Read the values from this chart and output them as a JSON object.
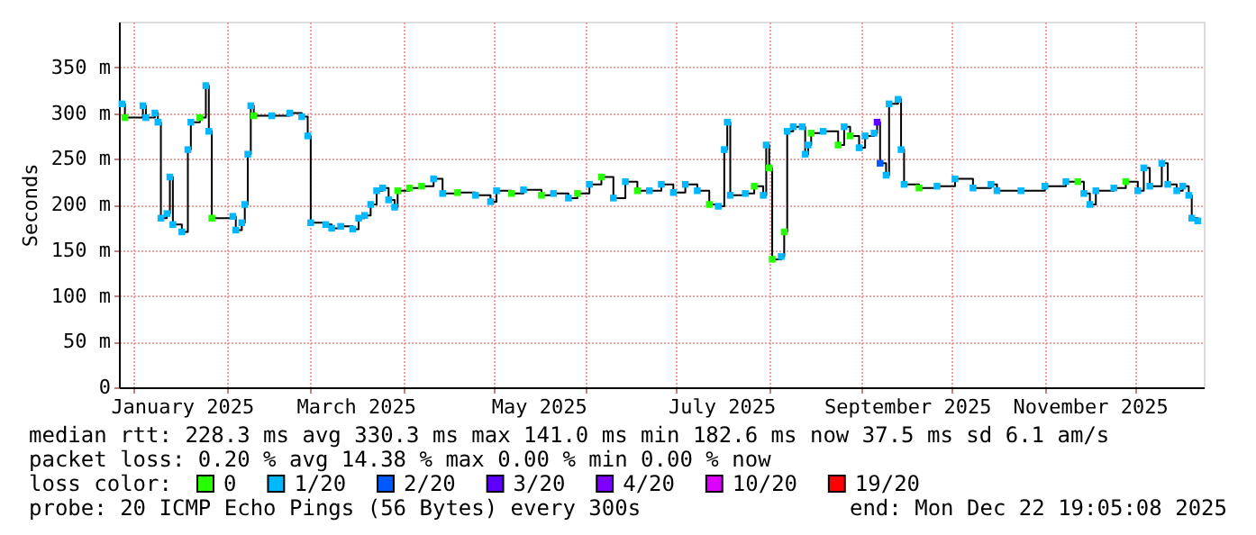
{
  "chart_data": {
    "type": "step",
    "ylabel": "Seconds",
    "xlim": [
      "2024-12-27",
      "2025-12-24"
    ],
    "xticks": [
      {
        "value": "2025-01-01",
        "label": null
      },
      {
        "value": "2025-01-17",
        "label": "January 2025"
      },
      {
        "value": "2025-02-01",
        "label": null
      },
      {
        "value": "2025-03-01",
        "label": null
      },
      {
        "value": "2025-03-16",
        "label": "March 2025"
      },
      {
        "value": "2025-04-01",
        "label": null
      },
      {
        "value": "2025-05-01",
        "label": null
      },
      {
        "value": "2025-05-16",
        "label": "May 2025"
      },
      {
        "value": "2025-06-01",
        "label": null
      },
      {
        "value": "2025-07-01",
        "label": null
      },
      {
        "value": "2025-07-16",
        "label": "July 2025"
      },
      {
        "value": "2025-08-01",
        "label": null
      },
      {
        "value": "2025-09-01",
        "label": null
      },
      {
        "value": "2025-09-16",
        "label": "September 2025"
      },
      {
        "value": "2025-10-01",
        "label": null
      },
      {
        "value": "2025-11-01",
        "label": null
      },
      {
        "value": "2025-11-16",
        "label": "November 2025"
      },
      {
        "value": "2025-12-01",
        "label": null
      }
    ],
    "ylim": [
      0,
      400
    ],
    "yticks": [
      0,
      {
        "value": 50,
        "label": "50 m"
      },
      {
        "value": 100,
        "label": "100 m"
      },
      {
        "value": 150,
        "label": "150 m"
      },
      {
        "value": 200,
        "label": "200 m"
      },
      {
        "value": 250,
        "label": "250 m"
      },
      {
        "value": 300,
        "label": "300 m"
      },
      {
        "value": 350,
        "label": "350 m"
      }
    ],
    "grid": true,
    "legend": "bottom",
    "legend_title": "loss color:",
    "annotations": [
      "median rtt:  228.3 ms avg  330.3 ms max  141.0 ms min  182.6 ms now  37.5 ms sd  6.1   am/s",
      "packet loss: 0.20 % avg  14.38 % max  0.00 % min  0.00 % now",
      "probe:       20 ICMP Echo Pings (56 Bytes) every 300s",
      "end: Mon Dec 22 19:05:08 2025"
    ],
    "x": [
      "2024-12-28",
      "2024-12-29",
      "2025-01-04",
      "2025-01-05",
      "2025-01-08",
      "2025-01-09",
      "2025-01-10",
      "2025-01-12",
      "2025-01-13",
      "2025-01-14",
      "2025-01-17",
      "2025-01-19",
      "2025-01-20",
      "2025-01-23",
      "2025-01-25",
      "2025-01-26",
      "2025-01-27",
      "2025-02-03",
      "2025-02-04",
      "2025-02-06",
      "2025-02-07",
      "2025-02-08",
      "2025-02-09",
      "2025-02-10",
      "2025-02-16",
      "2025-02-22",
      "2025-02-26",
      "2025-02-28",
      "2025-03-01",
      "2025-03-06",
      "2025-03-08",
      "2025-03-11",
      "2025-03-15",
      "2025-03-17",
      "2025-03-19",
      "2025-03-21",
      "2025-03-23",
      "2025-03-25",
      "2025-03-27",
      "2025-03-29",
      "2025-03-30",
      "2025-04-03",
      "2025-04-07",
      "2025-04-11",
      "2025-04-14",
      "2025-04-19",
      "2025-04-25",
      "2025-04-30",
      "2025-05-02",
      "2025-05-07",
      "2025-05-11",
      "2025-05-17",
      "2025-05-21",
      "2025-05-26",
      "2025-05-29",
      "2025-06-02",
      "2025-06-06",
      "2025-06-10",
      "2025-06-14",
      "2025-06-18",
      "2025-06-22",
      "2025-06-26",
      "2025-06-30",
      "2025-07-04",
      "2025-07-08",
      "2025-07-12",
      "2025-07-15",
      "2025-07-17",
      "2025-07-18",
      "2025-07-19",
      "2025-07-24",
      "2025-07-27",
      "2025-07-30",
      "2025-07-31",
      "2025-08-01",
      "2025-08-02",
      "2025-08-05",
      "2025-08-06",
      "2025-08-07",
      "2025-08-09",
      "2025-08-12",
      "2025-08-13",
      "2025-08-14",
      "2025-08-15",
      "2025-08-19",
      "2025-08-24",
      "2025-08-26",
      "2025-08-28",
      "2025-08-31",
      "2025-09-02",
      "2025-09-05",
      "2025-09-06",
      "2025-09-07",
      "2025-09-09",
      "2025-09-10",
      "2025-09-13",
      "2025-09-14",
      "2025-09-15",
      "2025-09-20",
      "2025-09-26",
      "2025-10-02",
      "2025-10-08",
      "2025-10-14",
      "2025-10-16",
      "2025-10-24",
      "2025-11-01",
      "2025-11-08",
      "2025-11-12",
      "2025-11-14",
      "2025-11-16",
      "2025-11-18",
      "2025-11-24",
      "2025-11-28",
      "2025-12-02",
      "2025-12-04",
      "2025-12-06",
      "2025-12-10",
      "2025-12-12",
      "2025-12-15",
      "2025-12-17",
      "2025-12-19",
      "2025-12-20",
      "2025-12-22"
    ],
    "series": [
      {
        "color": "#000000",
        "marker": "none",
        "line_style": "solid",
        "values": [
          310,
          295,
          308,
          295,
          300,
          290,
          185,
          190,
          230,
          178,
          170,
          260,
          290,
          295,
          330,
          280,
          185,
          187,
          172,
          180,
          200,
          255,
          308,
          297,
          297,
          300,
          296,
          275,
          180,
          178,
          174,
          176,
          173,
          185,
          188,
          200,
          215,
          218,
          205,
          197,
          215,
          218,
          220,
          228,
          212,
          213,
          210,
          203,
          215,
          212,
          216,
          210,
          212,
          207,
          212,
          222,
          230,
          207,
          225,
          215,
          215,
          222,
          213,
          222,
          215,
          200,
          198,
          260,
          290,
          210,
          212,
          220,
          210,
          265,
          240,
          140,
          143,
          170,
          280,
          285,
          285,
          255,
          265,
          278,
          280,
          265,
          285,
          275,
          262,
          275,
          278,
          290,
          245,
          232,
          310,
          315,
          260,
          222,
          218,
          220,
          228,
          218,
          222,
          215,
          215,
          220,
          225,
          225,
          212,
          200,
          215,
          218,
          225,
          215,
          240,
          220,
          245,
          222,
          215,
          220,
          210,
          185,
          182
        ]
      },
      {
        "type": "scatter",
        "name": "0",
        "color": "#26ff00",
        "marker": "square",
        "x": [
          "2024-12-29",
          "2025-01-23",
          "2025-01-27",
          "2025-02-10",
          "2025-03-30",
          "2025-04-03",
          "2025-04-07",
          "2025-04-19",
          "2025-05-07",
          "2025-05-17",
          "2025-05-29",
          "2025-06-06",
          "2025-06-18",
          "2025-07-12",
          "2025-07-27",
          "2025-08-01",
          "2025-08-02",
          "2025-08-06",
          "2025-08-15",
          "2025-08-24",
          "2025-08-28",
          "2025-09-20",
          "2025-11-12",
          "2025-11-28"
        ],
        "values": [
          295,
          295,
          185,
          297,
          215,
          218,
          220,
          213,
          212,
          210,
          212,
          230,
          215,
          200,
          220,
          240,
          140,
          170,
          278,
          265,
          275,
          218,
          225,
          225
        ]
      },
      {
        "type": "scatter",
        "name": "1/20",
        "color": "#00b8ff",
        "marker": "square",
        "x": [
          "2024-12-28",
          "2025-01-04",
          "2025-01-05",
          "2025-01-08",
          "2025-01-09",
          "2025-01-10",
          "2025-01-12",
          "2025-01-13",
          "2025-01-14",
          "2025-01-17",
          "2025-01-19",
          "2025-01-20",
          "2025-01-25",
          "2025-01-26",
          "2025-02-03",
          "2025-02-04",
          "2025-02-06",
          "2025-02-07",
          "2025-02-08",
          "2025-02-09",
          "2025-02-16",
          "2025-02-22",
          "2025-02-26",
          "2025-02-28",
          "2025-03-01",
          "2025-03-06",
          "2025-03-08",
          "2025-03-11",
          "2025-03-15",
          "2025-03-17",
          "2025-03-19",
          "2025-03-21",
          "2025-03-23",
          "2025-03-25",
          "2025-03-27",
          "2025-03-29",
          "2025-04-11",
          "2025-04-14",
          "2025-04-25",
          "2025-04-30",
          "2025-05-02",
          "2025-05-11",
          "2025-05-21",
          "2025-05-26",
          "2025-06-02",
          "2025-06-10",
          "2025-06-14",
          "2025-06-22",
          "2025-06-26",
          "2025-06-30",
          "2025-07-04",
          "2025-07-08",
          "2025-07-15",
          "2025-07-17",
          "2025-07-18",
          "2025-07-19",
          "2025-07-24",
          "2025-07-30",
          "2025-07-31",
          "2025-08-05",
          "2025-08-07",
          "2025-08-09",
          "2025-08-12",
          "2025-08-13",
          "2025-08-14",
          "2025-08-19",
          "2025-08-26",
          "2025-08-31",
          "2025-09-02",
          "2025-09-05",
          "2025-09-09",
          "2025-09-10",
          "2025-09-13",
          "2025-09-14",
          "2025-09-15",
          "2025-09-26",
          "2025-10-02",
          "2025-10-08",
          "2025-10-14",
          "2025-10-16",
          "2025-10-24",
          "2025-11-01",
          "2025-11-08",
          "2025-11-14",
          "2025-11-16",
          "2025-11-18",
          "2025-11-24",
          "2025-12-02",
          "2025-12-04",
          "2025-12-06",
          "2025-12-10",
          "2025-12-12",
          "2025-12-15",
          "2025-12-17",
          "2025-12-19",
          "2025-12-20",
          "2025-12-22"
        ],
        "values": [
          310,
          308,
          295,
          300,
          290,
          185,
          190,
          230,
          178,
          170,
          260,
          290,
          330,
          280,
          187,
          172,
          180,
          200,
          255,
          308,
          297,
          300,
          296,
          275,
          180,
          178,
          174,
          176,
          173,
          185,
          188,
          200,
          215,
          218,
          205,
          197,
          228,
          212,
          210,
          203,
          215,
          216,
          212,
          207,
          222,
          207,
          225,
          215,
          222,
          213,
          222,
          215,
          198,
          260,
          290,
          210,
          212,
          210,
          265,
          143,
          280,
          285,
          285,
          255,
          265,
          280,
          285,
          262,
          275,
          278,
          232,
          310,
          315,
          260,
          222,
          220,
          228,
          218,
          222,
          215,
          215,
          220,
          225,
          212,
          200,
          215,
          218,
          215,
          240,
          220,
          245,
          222,
          215,
          220,
          210,
          185,
          182
        ]
      },
      {
        "type": "scatter",
        "name": "2/20",
        "color": "#0059ff",
        "marker": "square",
        "x": [
          "2025-09-07"
        ],
        "values": [
          245
        ]
      },
      {
        "type": "scatter",
        "name": "3/20",
        "color": "#5e00ff",
        "marker": "square",
        "x": [
          "2025-09-06"
        ],
        "values": [
          290
        ]
      },
      {
        "type": "scatter",
        "name": "4/20",
        "color": "#7e00ff",
        "marker": "square",
        "values": [
          null,
          null,
          null,
          null,
          null,
          null,
          null,
          null,
          null,
          null,
          null,
          null,
          null,
          null,
          null,
          null,
          null,
          null,
          null,
          null,
          null,
          null,
          null,
          null,
          null,
          null,
          null,
          null,
          null,
          null,
          null,
          null,
          null,
          null,
          null,
          null,
          null,
          null,
          null,
          null,
          null,
          null,
          null,
          null,
          null,
          null,
          null,
          null,
          null,
          null,
          null,
          null,
          null,
          null,
          null,
          null,
          null,
          null,
          null,
          null,
          null,
          null,
          null,
          null,
          null,
          null,
          null,
          null,
          null,
          null,
          null,
          null,
          null,
          null,
          null,
          null,
          null,
          null,
          null,
          null,
          null,
          null,
          null,
          null,
          null,
          null,
          null,
          null,
          null,
          null,
          null,
          null,
          null,
          null,
          null,
          null,
          null,
          null,
          null,
          null,
          null,
          null,
          null,
          null,
          null,
          null,
          null,
          null,
          null,
          null,
          null,
          null,
          null,
          null,
          null,
          null,
          null,
          null,
          null,
          null,
          null,
          null,
          null
        ]
      },
      {
        "type": "scatter",
        "name": "10/20",
        "color": "#dd00ff",
        "marker": "square",
        "values": [
          null,
          null,
          null,
          null,
          null,
          null,
          null,
          null,
          null,
          null,
          null,
          null,
          null,
          null,
          null,
          null,
          null,
          null,
          null,
          null,
          null,
          null,
          null,
          null,
          null,
          null,
          null,
          null,
          null,
          null,
          null,
          null,
          null,
          null,
          null,
          null,
          null,
          null,
          null,
          null,
          null,
          null,
          null,
          null,
          null,
          null,
          null,
          null,
          null,
          null,
          null,
          null,
          null,
          null,
          null,
          null,
          null,
          null,
          null,
          null,
          null,
          null,
          null,
          null,
          null,
          null,
          null,
          null,
          null,
          null,
          null,
          null,
          null,
          null,
          null,
          null,
          null,
          null,
          null,
          null,
          null,
          null,
          null,
          null,
          null,
          null,
          null,
          null,
          null,
          null,
          null,
          null,
          null,
          null,
          null,
          null,
          null,
          null,
          null,
          null,
          null,
          null,
          null,
          null,
          null,
          null,
          null,
          null,
          null,
          null,
          null,
          null,
          null,
          null,
          null,
          null,
          null,
          null,
          null,
          null,
          null,
          null,
          null
        ]
      },
      {
        "type": "scatter",
        "name": "19/20",
        "color": "#ff0000",
        "marker": "square",
        "values": [
          null,
          null,
          null,
          null,
          null,
          null,
          null,
          null,
          null,
          null,
          null,
          null,
          null,
          null,
          null,
          null,
          null,
          null,
          null,
          null,
          null,
          null,
          null,
          null,
          null,
          null,
          null,
          null,
          null,
          null,
          null,
          null,
          null,
          null,
          null,
          null,
          null,
          null,
          null,
          null,
          null,
          null,
          null,
          null,
          null,
          null,
          null,
          null,
          null,
          null,
          null,
          null,
          null,
          null,
          null,
          null,
          null,
          null,
          null,
          null,
          null,
          null,
          null,
          null,
          null,
          null,
          null,
          null,
          null,
          null,
          null,
          null,
          null,
          null,
          null,
          null,
          null,
          null,
          null,
          null,
          null,
          null,
          null,
          null,
          null,
          null,
          null,
          null,
          null,
          null,
          null,
          null,
          null,
          null,
          null,
          null,
          null,
          null,
          null,
          null,
          null,
          null,
          null,
          null,
          null,
          null,
          null,
          null,
          null,
          null,
          null,
          null,
          null,
          null,
          null,
          null,
          null,
          null,
          null,
          null,
          null,
          null,
          null
        ]
      }
    ]
  }
}
